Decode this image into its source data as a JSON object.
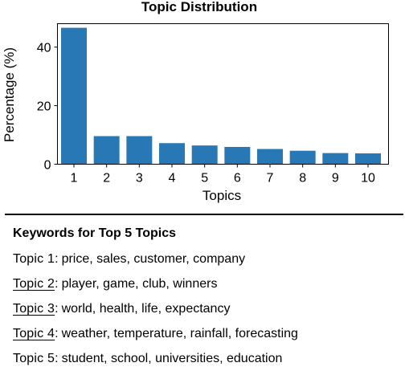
{
  "chart_data": {
    "type": "bar",
    "title": "Topic Distribution",
    "xlabel": "Topics",
    "ylabel": "Percentage (%)",
    "categories": [
      "1",
      "2",
      "3",
      "4",
      "5",
      "6",
      "7",
      "8",
      "9",
      "10"
    ],
    "values": [
      46.6,
      9.6,
      9.6,
      7.2,
      6.4,
      5.9,
      5.2,
      4.6,
      3.8,
      3.7
    ],
    "yticks": [
      0,
      20,
      40
    ],
    "ylim": [
      0,
      48
    ],
    "grid": false,
    "bar_color": "#2878b5"
  },
  "keywords": {
    "heading": "Keywords for Top 5 Topics",
    "topics": [
      {
        "label": "Topic 1",
        "underlined": false,
        "words": "price, sales, customer, company"
      },
      {
        "label": "Topic 2",
        "underlined": true,
        "words": "player, game, club, winners"
      },
      {
        "label": "Topic 3",
        "underlined": true,
        "words": "world, health, life, expectancy"
      },
      {
        "label": "Topic 4",
        "underlined": true,
        "words": "weather, temperature, rainfall, forecasting"
      },
      {
        "label": "Topic 5",
        "underlined": false,
        "words": "student, school, universities, education"
      }
    ]
  }
}
